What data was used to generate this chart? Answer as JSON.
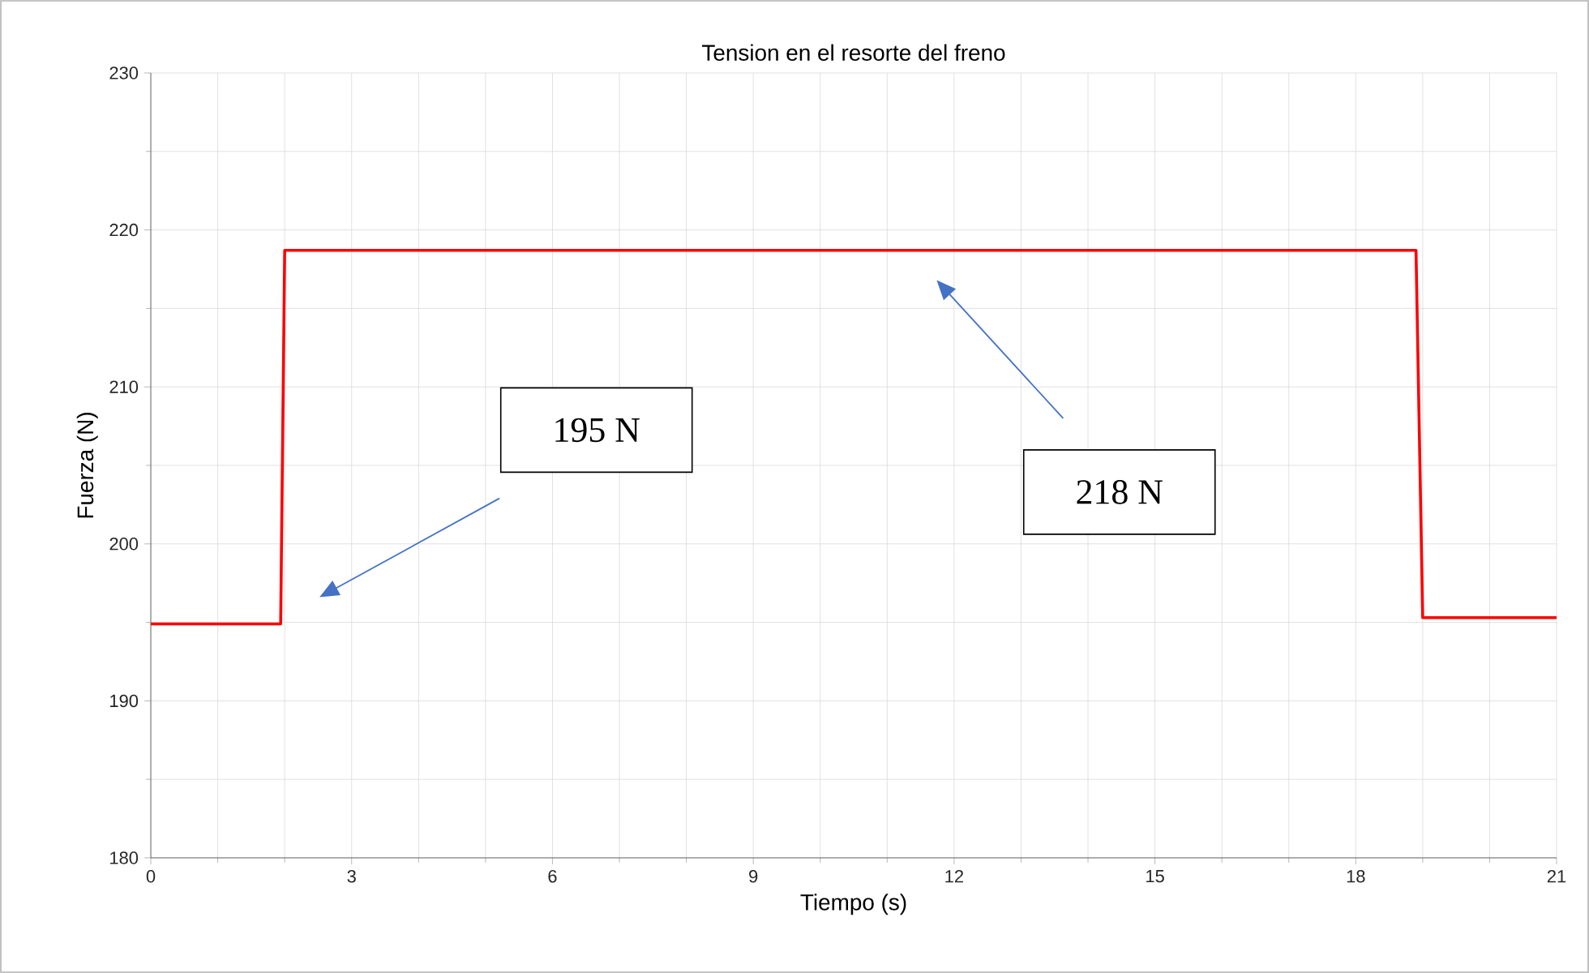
{
  "chart_data": {
    "type": "line",
    "title": "Tension en el resorte del freno",
    "xlabel": "Tiempo (s)",
    "ylabel": "Fuerza (N)",
    "x": [
      0,
      1.94,
      2.0,
      18.9,
      19.0,
      21
    ],
    "series": [
      {
        "color": "#ff0000",
        "values": [
          194.9,
          194.9,
          218.7,
          218.7,
          195.3,
          195.3
        ]
      }
    ],
    "xlim": [
      0,
      21
    ],
    "ylim": [
      180,
      230
    ],
    "xticks": [
      0,
      3,
      6,
      9,
      12,
      15,
      18,
      21
    ],
    "yticks": [
      180,
      190,
      200,
      210,
      220,
      230
    ],
    "grid": true,
    "marker": "none",
    "line_style": "solid",
    "annotations": [
      "195 N",
      "218 N"
    ]
  }
}
